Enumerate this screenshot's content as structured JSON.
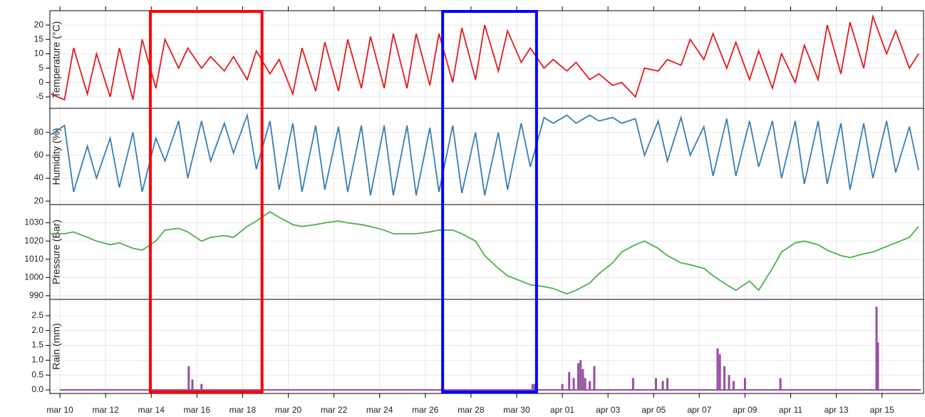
{
  "chart_data": [
    {
      "type": "line",
      "ylabel": "Temperature (°C)",
      "color": "#e41a1c",
      "x": [
        -0.4,
        0.2,
        0.6,
        1.2,
        1.6,
        2.2,
        2.6,
        3.2,
        3.6,
        4.2,
        4.6,
        5.2,
        5.6,
        6.2,
        6.6,
        7.2,
        7.6,
        8.2,
        8.6,
        9.2,
        9.6,
        10.2,
        10.6,
        11.2,
        11.6,
        12.2,
        12.6,
        13.2,
        13.6,
        14.2,
        14.6,
        15.2,
        15.6,
        16.2,
        16.6,
        17.2,
        17.6,
        18.2,
        18.6,
        19.2,
        19.6,
        20.2,
        20.6,
        21.2,
        21.6,
        22.2,
        22.6,
        23.2,
        23.6,
        24.2,
        24.6,
        25.2,
        25.6,
        26.2,
        26.6,
        27.2,
        27.6,
        28.2,
        28.6,
        29.2,
        29.6,
        30.2,
        30.6,
        31.2,
        31.6,
        32.2,
        32.6,
        33.2,
        33.6,
        34.2,
        34.6,
        35.2,
        35.6,
        36.2,
        36.6,
        37.2,
        37.6
      ],
      "values": [
        -4,
        -6,
        12,
        -4,
        10,
        -5,
        12,
        -6,
        15,
        -2,
        15,
        5,
        12,
        5,
        9,
        4,
        9,
        1,
        11,
        3,
        8,
        -4,
        12,
        -3,
        14,
        -3,
        15,
        -2,
        16,
        -2,
        17,
        -2,
        17,
        -1,
        17,
        0,
        19,
        1,
        20,
        4,
        18,
        7,
        12,
        5,
        8,
        4,
        7,
        1,
        3,
        -1,
        0,
        -5,
        5,
        4,
        8,
        6,
        15,
        8,
        17,
        5,
        14,
        1,
        11,
        -2,
        10,
        0,
        13,
        1,
        20,
        3,
        21,
        5,
        23,
        10,
        18,
        5,
        10
      ],
      "ylim": [
        -9,
        25
      ],
      "yticks": [
        -5,
        0,
        5,
        10,
        15,
        20
      ]
    },
    {
      "type": "line",
      "ylabel": "Humidity (%)",
      "color": "#377eb8",
      "x": [
        -0.4,
        0.2,
        0.6,
        1.2,
        1.6,
        2.2,
        2.6,
        3.2,
        3.6,
        4.2,
        4.6,
        5.2,
        5.6,
        6.2,
        6.6,
        7.2,
        7.6,
        8.2,
        8.6,
        9.2,
        9.6,
        10.2,
        10.6,
        11.2,
        11.6,
        12.2,
        12.6,
        13.2,
        13.6,
        14.2,
        14.6,
        15.2,
        15.6,
        16.2,
        16.6,
        17.2,
        17.6,
        18.2,
        18.6,
        19.2,
        19.6,
        20.2,
        20.6,
        21.2,
        21.6,
        22.2,
        22.6,
        23.2,
        23.6,
        24.2,
        24.6,
        25.2,
        25.6,
        26.2,
        26.6,
        27.2,
        27.6,
        28.2,
        28.6,
        29.2,
        29.6,
        30.2,
        30.6,
        31.2,
        31.6,
        32.2,
        32.6,
        33.2,
        33.6,
        34.2,
        34.6,
        35.2,
        35.6,
        36.2,
        36.6,
        37.2,
        37.6
      ],
      "values": [
        78,
        86,
        28,
        68,
        40,
        75,
        32,
        80,
        28,
        75,
        55,
        90,
        40,
        90,
        55,
        88,
        62,
        95,
        48,
        90,
        30,
        88,
        28,
        86,
        30,
        85,
        28,
        86,
        25,
        86,
        25,
        86,
        25,
        84,
        28,
        86,
        27,
        80,
        25,
        80,
        30,
        88,
        50,
        93,
        88,
        95,
        88,
        95,
        90,
        93,
        88,
        92,
        60,
        90,
        55,
        93,
        60,
        85,
        42,
        92,
        42,
        90,
        50,
        90,
        40,
        90,
        35,
        90,
        35,
        88,
        30,
        88,
        40,
        90,
        45,
        85,
        47
      ],
      "ylim": [
        17,
        101
      ],
      "yticks": [
        20,
        40,
        60,
        80
      ]
    },
    {
      "type": "line",
      "ylabel": "Pressure (Bar)",
      "color": "#4daf4a",
      "x": [
        -0.4,
        0.2,
        0.6,
        1.2,
        1.6,
        2.2,
        2.6,
        3.2,
        3.6,
        4.2,
        4.6,
        5.2,
        5.6,
        6.2,
        6.6,
        7.2,
        7.6,
        8.2,
        8.6,
        9.2,
        9.6,
        10.2,
        10.6,
        11.2,
        11.6,
        12.2,
        12.6,
        13.2,
        13.6,
        14.2,
        14.6,
        15.2,
        15.6,
        16.2,
        16.6,
        17.2,
        17.6,
        18.2,
        18.6,
        19.2,
        19.6,
        20.2,
        20.6,
        21.2,
        21.6,
        22.2,
        22.6,
        23.2,
        23.6,
        24.2,
        24.6,
        25.2,
        25.6,
        26.2,
        26.6,
        27.2,
        27.6,
        28.2,
        28.6,
        29.2,
        29.6,
        30.2,
        30.6,
        31.2,
        31.6,
        32.2,
        32.6,
        33.2,
        33.6,
        34.2,
        34.6,
        35.2,
        35.6,
        36.2,
        36.6,
        37.2,
        37.6
      ],
      "values": [
        1024,
        1024,
        1025,
        1022,
        1020,
        1018,
        1019,
        1016,
        1015,
        1020,
        1026,
        1027,
        1025,
        1020,
        1022,
        1023,
        1022,
        1028,
        1031,
        1036,
        1033,
        1029,
        1028,
        1029,
        1030,
        1031,
        1030,
        1029,
        1028,
        1026,
        1024,
        1024,
        1024,
        1025,
        1026,
        1026,
        1024,
        1020,
        1012,
        1005,
        1001,
        998,
        996,
        995,
        994,
        991,
        993,
        997,
        1002,
        1008,
        1014,
        1018,
        1020,
        1016,
        1012,
        1008,
        1007,
        1005,
        1001,
        996,
        993,
        998,
        993,
        1005,
        1014,
        1019,
        1020,
        1018,
        1015,
        1012,
        1011,
        1013,
        1014,
        1017,
        1019,
        1022,
        1028
      ],
      "ylim": [
        988,
        1040
      ],
      "yticks": [
        990,
        1000,
        1010,
        1020,
        1030
      ]
    },
    {
      "type": "stem",
      "ylabel": "Rain (mm)",
      "color": "#984ea3",
      "x": [
        5.64,
        5.8,
        6.2,
        20.7,
        20.8,
        22.0,
        22.3,
        22.5,
        22.7,
        22.8,
        22.9,
        23.0,
        23.2,
        23.4,
        25.1,
        26.1,
        26.4,
        26.6,
        28.8,
        28.9,
        29.1,
        29.3,
        29.5,
        30.0,
        31.55,
        35.76,
        35.82
      ],
      "values": [
        0.8,
        0.35,
        0.2,
        0.2,
        0.2,
        0.2,
        0.6,
        0.4,
        0.9,
        1.0,
        0.7,
        0.4,
        0.3,
        0.8,
        0.4,
        0.4,
        0.3,
        0.4,
        1.4,
        1.2,
        0.8,
        0.5,
        0.3,
        0.4,
        0.4,
        2.8,
        1.6
      ],
      "ylim": [
        -0.12,
        3.05
      ],
      "yticks": [
        {
          "value": 0,
          "label": "0.0"
        },
        0.5,
        {
          "value": 1,
          "label": "1.0"
        },
        1.5,
        {
          "value": 2,
          "label": "2.0"
        },
        2.5
      ],
      "xlim": [
        -0.44,
        37.82
      ],
      "xticks": [
        {
          "value": 0,
          "label": "mar 10"
        },
        {
          "value": 2,
          "label": "mar 12"
        },
        {
          "value": 4,
          "label": "mar 14"
        },
        {
          "value": 6,
          "label": "mar 16"
        },
        {
          "value": 8,
          "label": "mar 18"
        },
        {
          "value": 10,
          "label": "mar 20"
        },
        {
          "value": 12,
          "label": "mar 22"
        },
        {
          "value": 14,
          "label": "mar 24"
        },
        {
          "value": 16,
          "label": "mar 26"
        },
        {
          "value": 18,
          "label": "mar 28"
        },
        {
          "value": 20,
          "label": "mar 30"
        },
        {
          "value": 22,
          "label": "apr 01"
        },
        {
          "value": 24,
          "label": "apr 03"
        },
        {
          "value": 26,
          "label": "apr 05"
        },
        {
          "value": 28,
          "label": "apr 07"
        },
        {
          "value": 30,
          "label": "apr 09"
        },
        {
          "value": 32,
          "label": "apr 11"
        },
        {
          "value": 34,
          "label": "apr 13"
        },
        {
          "value": 36,
          "label": "apr 15"
        }
      ],
      "grid": true
    }
  ],
  "highlights": [
    {
      "x": [
        3.96,
        8.85
      ],
      "color": "#ff0000"
    },
    {
      "x": [
        16.76,
        20.87
      ],
      "color": "#0000ff"
    }
  ]
}
